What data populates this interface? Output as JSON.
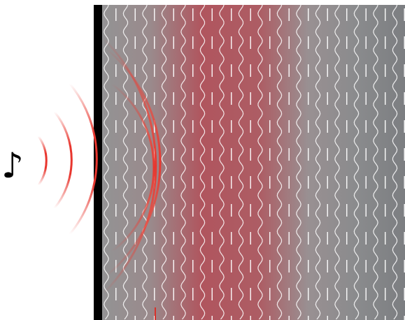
{
  "diagram": {
    "source_icon": "music-note-icon",
    "source_glyph": "♪",
    "colors": {
      "background": "#ffffff",
      "wall": "#000000",
      "medium_edge": "#7f8184",
      "medium_center": "#b0555e",
      "wave_arc": "#e8362e",
      "wave_line": "#ffffff",
      "marker": "#d7322b"
    }
  }
}
